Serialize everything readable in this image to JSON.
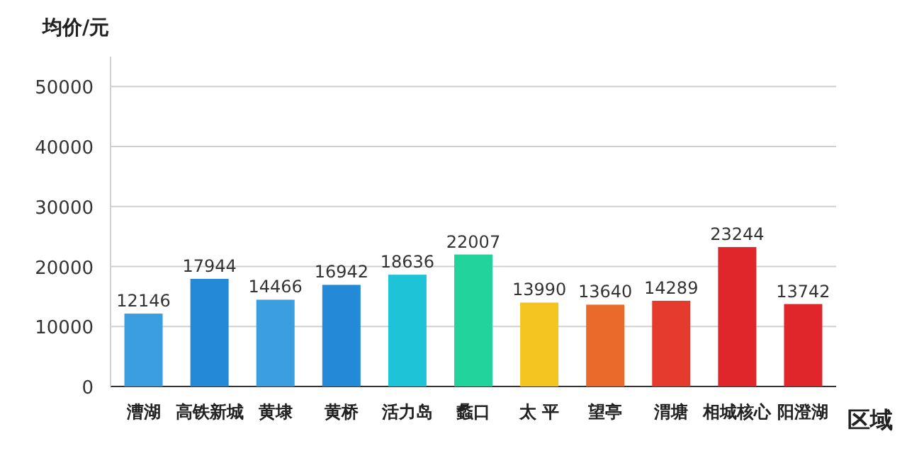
{
  "chart_data": {
    "type": "bar",
    "ylabel": "均价/元",
    "xlabel": "区域",
    "categories": [
      "漕湖",
      "高铁新城",
      "黄埭",
      "黄桥",
      "活力岛",
      "蠡口",
      "太 平",
      "望亭",
      "渭塘",
      "相城核心",
      "阳澄湖"
    ],
    "values": [
      12146,
      17944,
      14466,
      16942,
      18636,
      22007,
      13990,
      13640,
      14289,
      23244,
      13742
    ],
    "colors": [
      "#3b9ede",
      "#2489d6",
      "#3b9ede",
      "#2489d6",
      "#1ec3d8",
      "#22d49b",
      "#f4c520",
      "#ea6a2c",
      "#e53a2e",
      "#e0262b",
      "#e0262b"
    ],
    "ylim": [
      0,
      55000
    ],
    "yticks": [
      0,
      10000,
      20000,
      30000,
      40000,
      50000
    ],
    "grid": "y",
    "data_labels": true
  }
}
